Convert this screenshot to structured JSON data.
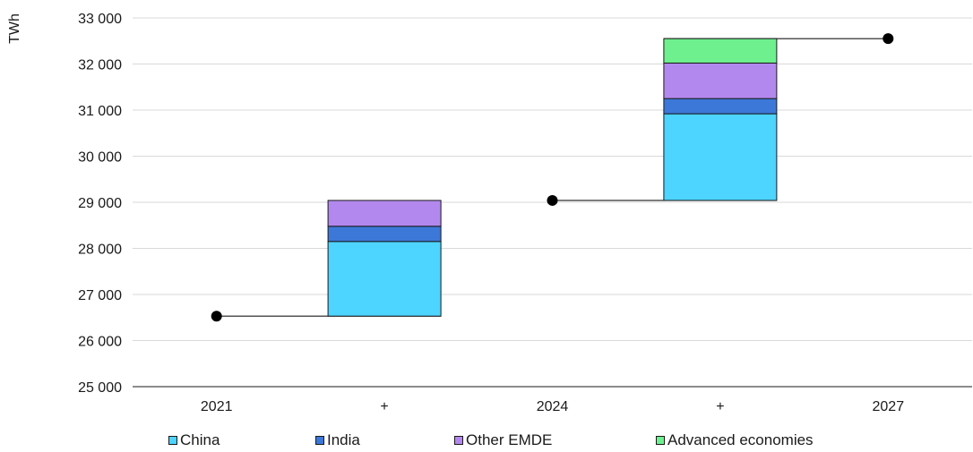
{
  "chart_data": {
    "type": "bar",
    "subtype": "waterfall",
    "ylabel": "TWh",
    "ylim": [
      25000,
      33000
    ],
    "ytick_step": 1000,
    "y_tick_labels": [
      "25 000",
      "26 000",
      "27 000",
      "28 000",
      "29 000",
      "30 000",
      "31 000",
      "32 000",
      "33 000"
    ],
    "categories": [
      "2021",
      "+",
      "2024",
      "+",
      "2027"
    ],
    "totals": [
      {
        "category_index": 0,
        "label": "2021",
        "value": 26530
      },
      {
        "category_index": 2,
        "label": "2024",
        "value": 29040
      },
      {
        "category_index": 4,
        "label": "2027",
        "value": 32550
      }
    ],
    "increments": [
      {
        "category_index": 1,
        "base": 26530,
        "segments": [
          1620,
          330,
          560,
          0
        ]
      },
      {
        "category_index": 3,
        "base": 29040,
        "segments": [
          1880,
          330,
          770,
          530
        ]
      }
    ],
    "series": [
      {
        "name": "China",
        "color": "#4dd4ff"
      },
      {
        "name": "India",
        "color": "#3c78d8"
      },
      {
        "name": "Other EMDE",
        "color": "#b388ee"
      },
      {
        "name": "Advanced economies",
        "color": "#6ef08e"
      }
    ],
    "grid": true,
    "legend_position": "bottom"
  }
}
